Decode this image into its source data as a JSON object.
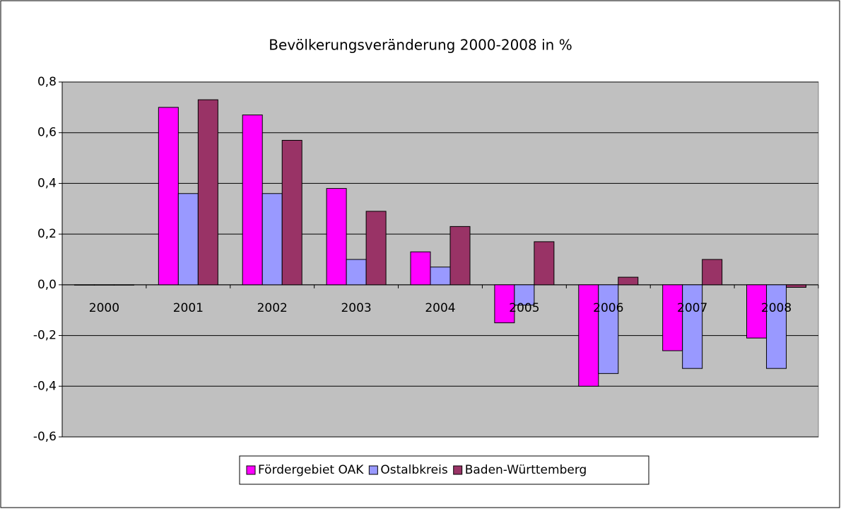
{
  "chart_data": {
    "type": "bar",
    "title": "Bevölkerungsveränderung 2000-2008 in %",
    "categories": [
      "2000",
      "2001",
      "2002",
      "2003",
      "2004",
      "2005",
      "2006",
      "2007",
      "2008"
    ],
    "series": [
      {
        "name": "Fördergebiet OAK",
        "color": "#ff00ff",
        "values": [
          0,
          0.7,
          0.67,
          0.38,
          0.13,
          -0.15,
          -0.4,
          -0.26,
          -0.21
        ]
      },
      {
        "name": "Ostalbkreis",
        "color": "#9999ff",
        "values": [
          0,
          0.36,
          0.36,
          0.1,
          0.07,
          -0.08,
          -0.35,
          -0.33,
          -0.33
        ]
      },
      {
        "name": "Baden-Württemberg",
        "color": "#993366",
        "values": [
          0,
          0.73,
          0.57,
          0.29,
          0.23,
          0.17,
          0.03,
          0.1,
          -0.01
        ]
      }
    ],
    "ylim": [
      -0.6,
      0.8
    ],
    "yticks": [
      {
        "value": -0.6,
        "label": "-0,6"
      },
      {
        "value": -0.4,
        "label": "-0,4"
      },
      {
        "value": -0.2,
        "label": "-0,2"
      },
      {
        "value": 0,
        "label": "0,0"
      },
      {
        "value": 0.2,
        "label": "0,2"
      },
      {
        "value": 0.4,
        "label": "0,4"
      },
      {
        "value": 0.6,
        "label": "0,6"
      },
      {
        "value": 0.8,
        "label": "0,8"
      }
    ],
    "grid": true,
    "legend": "bottom"
  }
}
